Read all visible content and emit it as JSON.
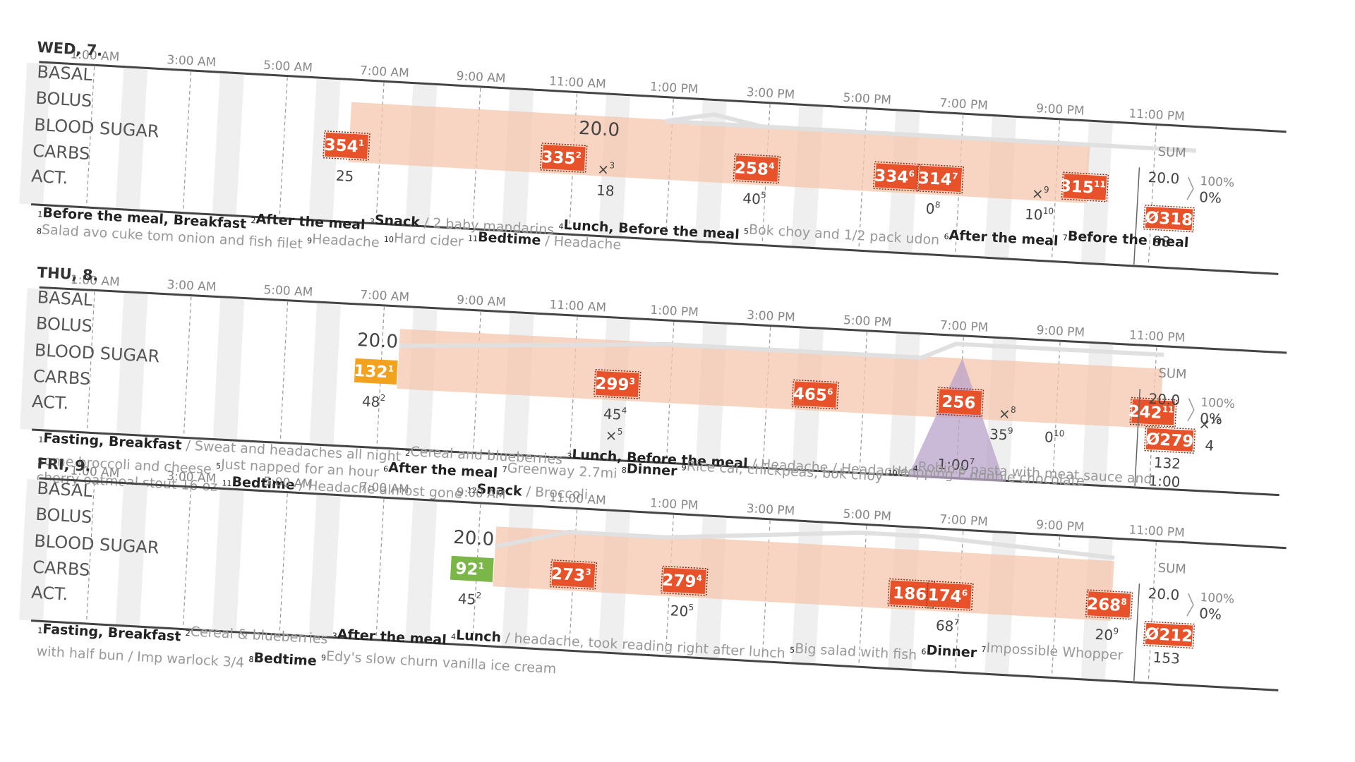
{
  "colors": {
    "high": "#e8522a",
    "mid": "#f2a21c",
    "normal": "#7ab648",
    "insulin_band": "#f5c6ad",
    "basal_line": "#e0e0e0",
    "activity": "#b9a3c9",
    "column_shade": "#efefef"
  },
  "row_labels": [
    "BASAL",
    "BOLUS",
    "BLOOD SUGAR",
    "CARBS",
    "ACT."
  ],
  "time_labels": [
    "1:00 AM",
    "3:00 AM",
    "5:00 AM",
    "7:00 AM",
    "9:00 AM",
    "11:00 AM",
    "1:00 PM",
    "3:00 PM",
    "5:00 PM",
    "7:00 PM",
    "9:00 PM",
    "11:00 PM"
  ],
  "sum_label": "SUM",
  "chart_data": [
    {
      "type": "table",
      "day": "WED, 7.",
      "basal_value": "20.0",
      "basal_value_hour": 11.5,
      "basal_line": [
        [
          24.0,
          0.0
        ],
        [
          13.0,
          0.0
        ],
        [
          14.0,
          0.6
        ],
        [
          15.0,
          0.0
        ],
        [
          24.0,
          0.0
        ]
      ],
      "band": [
        6.5,
        21.8
      ],
      "blood_sugar": [
        {
          "hour": 6.3,
          "value": 354,
          "note": "1",
          "level": "high",
          "dashed": true
        },
        {
          "hour": 10.8,
          "value": 335,
          "note": "2",
          "level": "high",
          "dashed": true
        },
        {
          "hour": 14.8,
          "value": 258,
          "note": "4",
          "level": "high",
          "dashed": true
        },
        {
          "hour": 17.7,
          "value": 334,
          "note": "6",
          "level": "high",
          "dashed": true
        },
        {
          "hour": 18.6,
          "value": 314,
          "note": "7",
          "level": "high",
          "dashed": true
        },
        {
          "hour": 21.6,
          "value": 315,
          "note": "11",
          "level": "high",
          "dashed": true
        }
      ],
      "carbs": [
        {
          "hour": 6.3,
          "value": "25",
          "note": ""
        },
        {
          "hour": 11.7,
          "value": "18",
          "note": ""
        },
        {
          "hour": 14.8,
          "value": "40",
          "note": "5"
        },
        {
          "hour": 18.5,
          "value": "0",
          "note": "8"
        },
        {
          "hour": 20.7,
          "value": "10",
          "note": "10"
        }
      ],
      "markers": [
        {
          "hour": 11.7,
          "note": "3"
        },
        {
          "hour": 20.7,
          "note": "9"
        }
      ],
      "activity": [],
      "sum": {
        "bolus": "20.0",
        "percent_top": "100%",
        "percent": "0%",
        "avg": "Ø318",
        "carbs": "93",
        "activity": ""
      },
      "notes": [
        [
          {
            "n": "1",
            "b": "Before the meal, Breakfast",
            "g": ""
          },
          {
            "n": "2",
            "b": "After the meal",
            "g": ""
          },
          {
            "n": "3",
            "b": "Snack",
            "g": " / 2 baby mandarins"
          },
          {
            "n": "4",
            "b": "Lunch, Before the meal",
            "g": ""
          },
          {
            "n": "5",
            "b": "",
            "g": "Bok choy and 1/2 pack udon"
          },
          {
            "n": "6",
            "b": "After the meal",
            "g": ""
          },
          {
            "n": "7",
            "b": "Before the meal",
            "g": ""
          }
        ],
        [
          {
            "n": "8",
            "b": "",
            "g": "Salad avo cuke tom onion and fish filet"
          },
          {
            "n": "9",
            "b": "",
            "g": "Headache"
          },
          {
            "n": "10",
            "b": "",
            "g": "Hard cider"
          },
          {
            "n": "11",
            "b": "Bedtime",
            "g": " / Headache"
          }
        ]
      ]
    },
    {
      "type": "table",
      "day": "THU, 8.",
      "basal_value": "20.0",
      "basal_value_hour": 6.9,
      "basal_line": [
        [
          7.5,
          -1.0
        ],
        [
          13.0,
          0.0
        ],
        [
          18.3,
          0.0
        ],
        [
          19.0,
          1.0
        ],
        [
          23.3,
          1.0
        ]
      ],
      "band": [
        7.5,
        23.3
      ],
      "blood_sugar": [
        {
          "hour": 6.9,
          "value": 132,
          "note": "1",
          "level": "mid",
          "dashed": false
        },
        {
          "hour": 11.9,
          "value": 299,
          "note": "3",
          "level": "high",
          "dashed": true
        },
        {
          "hour": 16.0,
          "value": 465,
          "note": "6",
          "level": "high",
          "dashed": true
        },
        {
          "hour": 19.0,
          "value": 256,
          "note": "",
          "level": "high",
          "dashed": true
        },
        {
          "hour": 23.0,
          "value": 242,
          "note": "11",
          "level": "high",
          "dashed": true
        }
      ],
      "carbs": [
        {
          "hour": 6.9,
          "value": "48",
          "note": "2"
        },
        {
          "hour": 11.9,
          "value": "45",
          "note": "4"
        },
        {
          "hour": 19.9,
          "value": "35",
          "note": "9"
        },
        {
          "hour": 21.0,
          "value": "0",
          "note": "10"
        },
        {
          "hour": 24.2,
          "value": "4",
          "note": ""
        }
      ],
      "markers": [
        {
          "hour": 11.9,
          "note": "5",
          "row": "act"
        },
        {
          "hour": 20.0,
          "note": "8",
          "row": "bs"
        },
        {
          "hour": 24.2,
          "note": "12",
          "row": "bs"
        }
      ],
      "activity": [
        {
          "hour": 19.0,
          "start": 18.0,
          "end": 20.0,
          "label": "1:00",
          "note": "7"
        }
      ],
      "sum": {
        "bolus": "20.0",
        "percent_top": "100%",
        "percent": "0%",
        "avg": "Ø279",
        "carbs": "132",
        "activity": "1:00"
      },
      "notes": [
        [
          {
            "n": "1",
            "b": "Fasting, Breakfast",
            "g": " / Sweat and headaches all night"
          },
          {
            "n": "2",
            "b": "",
            "g": "Cereal and blueberries"
          },
          {
            "n": "3",
            "b": "Lunch, Before the meal",
            "g": " / Headache / Headache"
          },
          {
            "n": "4",
            "b": "",
            "g": "Robin's pasta with meat sauce and"
          }
        ],
        [
          {
            "n": "",
            "b": "",
            "g": "some broccoli and cheese"
          },
          {
            "n": "5",
            "b": "",
            "g": "Just napped for an hour"
          },
          {
            "n": "6",
            "b": "After the meal",
            "g": ""
          },
          {
            "n": "7",
            "b": "",
            "g": "Greenway 2.7mi"
          },
          {
            "n": "8",
            "b": "Dinner",
            "g": ""
          },
          {
            "n": "9",
            "b": "",
            "g": "Rice cal, chickpeas, bok choy"
          },
          {
            "n": "10",
            "b": "",
            "g": "Hopping F double chocolate"
          }
        ],
        [
          {
            "n": "",
            "b": "",
            "g": "cherry oatmeal stout 16 oz"
          },
          {
            "n": "11",
            "b": "Bedtime",
            "g": " / Headache almost gone"
          },
          {
            "n": "12",
            "b": "Snack",
            "g": " / Broccoli"
          }
        ]
      ]
    },
    {
      "type": "table",
      "day": "FRI, 9.",
      "basal_value": "20.0",
      "basal_value_hour": 8.9,
      "basal_line": [
        [
          9.5,
          -1.2
        ],
        [
          11.0,
          0.0
        ],
        [
          13.0,
          0.0
        ],
        [
          17.0,
          1.0
        ],
        [
          18.5,
          1.0
        ],
        [
          22.3,
          0.3
        ]
      ],
      "band": [
        9.5,
        22.3
      ],
      "blood_sugar": [
        {
          "hour": 8.9,
          "value": 92,
          "note": "1",
          "level": "normal",
          "dashed": false
        },
        {
          "hour": 11.0,
          "value": 273,
          "note": "3",
          "level": "high",
          "dashed": true
        },
        {
          "hour": 13.3,
          "value": 279,
          "note": "4",
          "level": "high",
          "dashed": true
        },
        {
          "hour": 18.0,
          "value": 186,
          "note": "",
          "level": "high",
          "dashed": true
        },
        {
          "hour": 18.8,
          "value": 174,
          "note": "6",
          "level": "high",
          "dashed": true
        },
        {
          "hour": 22.1,
          "value": 268,
          "note": "8",
          "level": "high",
          "dashed": true
        }
      ],
      "carbs": [
        {
          "hour": 8.9,
          "value": "45",
          "note": "2"
        },
        {
          "hour": 13.3,
          "value": "20",
          "note": "5"
        },
        {
          "hour": 18.8,
          "value": "68",
          "note": "7"
        },
        {
          "hour": 22.1,
          "value": "20",
          "note": "9"
        }
      ],
      "markers": [],
      "activity": [],
      "sum": {
        "bolus": "20.0",
        "percent_top": "100%",
        "percent": "0%",
        "avg": "Ø212",
        "carbs": "153",
        "activity": ""
      },
      "notes": [
        [
          {
            "n": "1",
            "b": "Fasting, Breakfast",
            "g": ""
          },
          {
            "n": "2",
            "b": "",
            "g": "Cereal & blueberries"
          },
          {
            "n": "3",
            "b": "After the meal",
            "g": ""
          },
          {
            "n": "4",
            "b": "Lunch",
            "g": " / headache, took reading right after lunch"
          },
          {
            "n": "5",
            "b": "",
            "g": "Big salad with fish"
          },
          {
            "n": "6",
            "b": "Dinner",
            "g": ""
          },
          {
            "n": "7",
            "b": "",
            "g": "Impossible Whopper"
          }
        ],
        [
          {
            "n": "",
            "b": "",
            "g": "with half bun / Imp warlock 3/4"
          },
          {
            "n": "8",
            "b": "Bedtime",
            "g": ""
          },
          {
            "n": "9",
            "b": "",
            "g": "Edy's slow churn vanilla ice cream"
          }
        ]
      ]
    }
  ]
}
